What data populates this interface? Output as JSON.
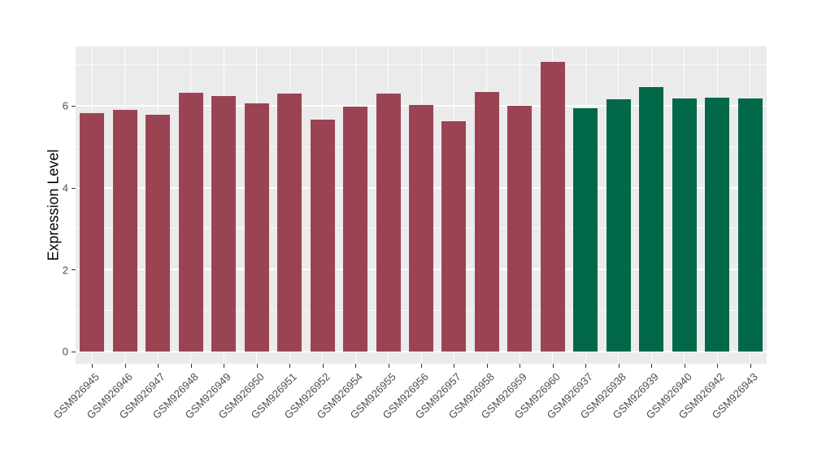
{
  "chart_data": {
    "type": "bar",
    "title": "",
    "xlabel": "",
    "ylabel": "Expression Level",
    "ylim": [
      -0.3,
      7.45
    ],
    "yticks": [
      0,
      2,
      4,
      6
    ],
    "minor_yticks": [
      1,
      3,
      5,
      7
    ],
    "grid": "on",
    "legend": "none",
    "panel_background": "#EBEBEB",
    "gridline_color": "#FFFFFF",
    "colors": {
      "red_group": "#9A4453",
      "green_group": "#016849"
    },
    "categories": [
      "GSM926945",
      "GSM926946",
      "GSM926947",
      "GSM926948",
      "GSM926949",
      "GSM926950",
      "GSM926951",
      "GSM926952",
      "GSM926954",
      "GSM926955",
      "GSM926956",
      "GSM926957",
      "GSM926958",
      "GSM926959",
      "GSM926960",
      "GSM926937",
      "GSM926938",
      "GSM926939",
      "GSM926940",
      "GSM926942",
      "GSM926943"
    ],
    "series": [
      {
        "name": "red_group",
        "color": "#9A4453",
        "categories": [
          "GSM926945",
          "GSM926946",
          "GSM926947",
          "GSM926948",
          "GSM926949",
          "GSM926950",
          "GSM926951",
          "GSM926952",
          "GSM926954",
          "GSM926955",
          "GSM926956",
          "GSM926957",
          "GSM926958",
          "GSM926959",
          "GSM926960"
        ],
        "values": [
          5.82,
          5.9,
          5.78,
          6.31,
          6.23,
          6.05,
          6.29,
          5.67,
          5.98,
          6.29,
          6.02,
          5.63,
          6.33,
          6.0,
          7.08
        ]
      },
      {
        "name": "green_group",
        "color": "#016849",
        "categories": [
          "GSM926937",
          "GSM926938",
          "GSM926939",
          "GSM926940",
          "GSM926942",
          "GSM926943"
        ],
        "values": [
          5.94,
          6.15,
          6.46,
          6.18,
          6.2,
          6.18
        ]
      }
    ]
  }
}
